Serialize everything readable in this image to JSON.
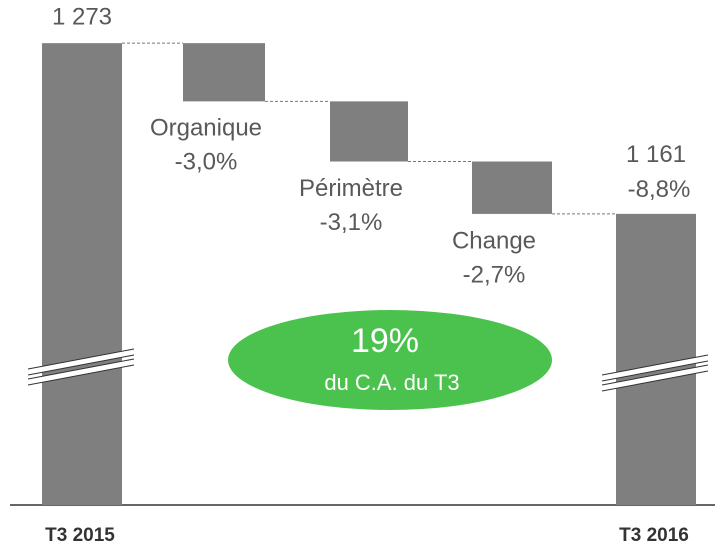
{
  "chart_data": {
    "type": "waterfall",
    "categories": [
      "T3 2015",
      "Organique",
      "Périmètre",
      "Change",
      "T3 2016"
    ],
    "values": [
      1273,
      null,
      null,
      null,
      1161
    ],
    "value_labels": [
      "1 273",
      null,
      null,
      null,
      "1 161"
    ],
    "changes": [
      null,
      -3.0,
      -3.1,
      -2.7,
      -8.8
    ],
    "change_labels": [
      null,
      "-3,0%",
      "-3,1%",
      "-2,7%",
      "-8,8%"
    ],
    "color": "#7f7f7f",
    "ylim": [
      970,
      1300
    ],
    "annotation": {
      "value": 19,
      "label": "19%",
      "text": "du C.A. du T3",
      "color": "#4cc24e"
    }
  }
}
